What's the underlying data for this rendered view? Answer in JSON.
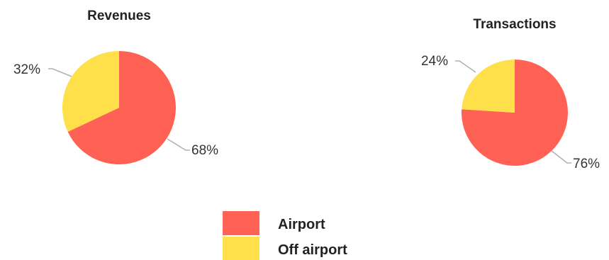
{
  "chart_data": [
    {
      "type": "pie",
      "title": "Revenues",
      "categories": [
        "Airport",
        "Off airport"
      ],
      "values": [
        68,
        32
      ],
      "labels": [
        "68%",
        "32%"
      ],
      "colors": [
        "#ff6254",
        "#ffe04a"
      ]
    },
    {
      "type": "pie",
      "title": "Transactions",
      "categories": [
        "Airport",
        "Off airport"
      ],
      "values": [
        76,
        24
      ],
      "labels": [
        "76%",
        "24%"
      ],
      "colors": [
        "#ff6254",
        "#ffe04a"
      ]
    }
  ],
  "legend": {
    "placement": "bottom-center",
    "items": [
      {
        "label": "Airport",
        "color": "#ff6254"
      },
      {
        "label": "Off airport",
        "color": "#ffe04a"
      }
    ]
  }
}
